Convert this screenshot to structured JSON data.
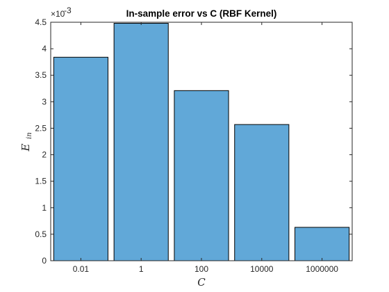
{
  "chart_data": {
    "type": "bar",
    "title": "In-sample error vs C (RBF Kernel)",
    "xlabel": "C",
    "ylabel_main": "E",
    "ylabel_sub": "in",
    "categories": [
      "0.01",
      "1",
      "100",
      "10000",
      "1000000"
    ],
    "values": [
      0.00384,
      0.00448,
      0.00321,
      0.00257,
      0.00063
    ],
    "ylim": [
      0,
      0.0045
    ],
    "yticks": [
      0,
      0.5,
      1,
      1.5,
      2,
      2.5,
      3,
      3.5,
      4,
      4.5
    ],
    "ytick_labels": [
      "0",
      "0.5",
      "1",
      "1.5",
      "2",
      "2.5",
      "3",
      "3.5",
      "4",
      "4.5"
    ],
    "y_multiplier": {
      "base": "×10",
      "exponent": "-3"
    },
    "bar_color": "#61a8d8",
    "bar_edge_color": "#000000",
    "grid": false,
    "legend": "none"
  }
}
